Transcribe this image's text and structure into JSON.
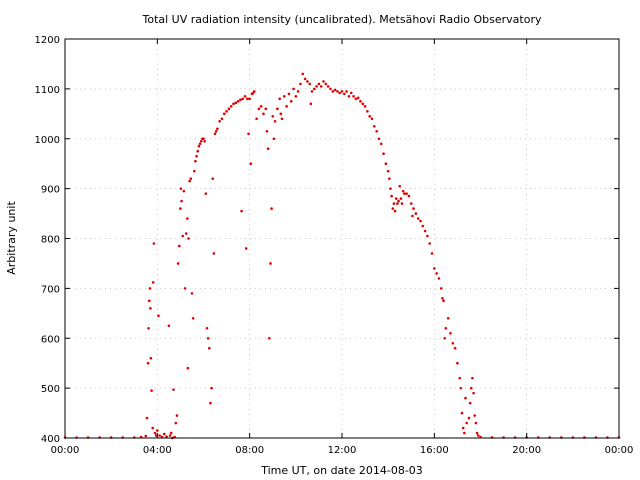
{
  "chart_data": {
    "type": "scatter",
    "title": "Total UV radiation intensity (uncalibrated). Metsähovi Radio Observatory",
    "xlabel": "Time UT, on date 2014-08-03",
    "ylabel": "Arbitrary unit",
    "xlim": [
      0,
      24
    ],
    "ylim": [
      400,
      1200
    ],
    "x_ticks": [
      {
        "value": 0,
        "label": "00:00"
      },
      {
        "value": 4,
        "label": "04:00"
      },
      {
        "value": 8,
        "label": "08:00"
      },
      {
        "value": 12,
        "label": "12:00"
      },
      {
        "value": 16,
        "label": "16:00"
      },
      {
        "value": 20,
        "label": "20:00"
      },
      {
        "value": 24,
        "label": "00:00"
      }
    ],
    "y_ticks": [
      {
        "value": 400,
        "label": "400"
      },
      {
        "value": 500,
        "label": "500"
      },
      {
        "value": 600,
        "label": "600"
      },
      {
        "value": 700,
        "label": "700"
      },
      {
        "value": 800,
        "label": "800"
      },
      {
        "value": 900,
        "label": "900"
      },
      {
        "value": 1000,
        "label": "1000"
      },
      {
        "value": 1100,
        "label": "1100"
      },
      {
        "value": 1200,
        "label": "1200"
      }
    ],
    "grid": true,
    "marker_color": "#e00000",
    "series": [
      {
        "x_unit": "hours UT",
        "points": [
          [
            0.0,
            401
          ],
          [
            0.5,
            401
          ],
          [
            1.0,
            401
          ],
          [
            1.5,
            401
          ],
          [
            2.0,
            401
          ],
          [
            2.5,
            401
          ],
          [
            3.0,
            401
          ],
          [
            3.3,
            402
          ],
          [
            3.5,
            404
          ],
          [
            3.55,
            440
          ],
          [
            3.6,
            550
          ],
          [
            3.62,
            620
          ],
          [
            3.65,
            675
          ],
          [
            3.68,
            700
          ],
          [
            3.7,
            660
          ],
          [
            3.72,
            560
          ],
          [
            3.75,
            495
          ],
          [
            3.8,
            420
          ],
          [
            3.82,
            712
          ],
          [
            3.85,
            790
          ],
          [
            3.9,
            410
          ],
          [
            3.95,
            405
          ],
          [
            4.0,
            415
          ],
          [
            4.05,
            645
          ],
          [
            4.1,
            405
          ],
          [
            4.2,
            402
          ],
          [
            4.3,
            408
          ],
          [
            4.4,
            403
          ],
          [
            4.5,
            625
          ],
          [
            4.55,
            405
          ],
          [
            4.6,
            410
          ],
          [
            4.65,
            400
          ],
          [
            4.7,
            497
          ],
          [
            4.75,
            402
          ],
          [
            4.8,
            430
          ],
          [
            4.85,
            445
          ],
          [
            4.9,
            750
          ],
          [
            4.95,
            785
          ],
          [
            5.0,
            860
          ],
          [
            5.02,
            900
          ],
          [
            5.05,
            875
          ],
          [
            5.1,
            805
          ],
          [
            5.15,
            895
          ],
          [
            5.2,
            700
          ],
          [
            5.25,
            810
          ],
          [
            5.3,
            840
          ],
          [
            5.32,
            540
          ],
          [
            5.35,
            800
          ],
          [
            5.4,
            915
          ],
          [
            5.45,
            920
          ],
          [
            5.5,
            690
          ],
          [
            5.55,
            640
          ],
          [
            5.6,
            935
          ],
          [
            5.65,
            955
          ],
          [
            5.7,
            965
          ],
          [
            5.75,
            975
          ],
          [
            5.8,
            985
          ],
          [
            5.85,
            990
          ],
          [
            5.9,
            995
          ],
          [
            5.95,
            1000
          ],
          [
            6.0,
            1000
          ],
          [
            6.05,
            995
          ],
          [
            6.1,
            890
          ],
          [
            6.15,
            620
          ],
          [
            6.2,
            600
          ],
          [
            6.25,
            580
          ],
          [
            6.3,
            470
          ],
          [
            6.35,
            500
          ],
          [
            6.4,
            920
          ],
          [
            6.45,
            770
          ],
          [
            6.5,
            1010
          ],
          [
            6.55,
            1015
          ],
          [
            6.6,
            1020
          ],
          [
            6.7,
            1035
          ],
          [
            6.8,
            1040
          ],
          [
            6.9,
            1050
          ],
          [
            7.0,
            1055
          ],
          [
            7.1,
            1060
          ],
          [
            7.2,
            1065
          ],
          [
            7.3,
            1070
          ],
          [
            7.4,
            1072
          ],
          [
            7.5,
            1075
          ],
          [
            7.6,
            1078
          ],
          [
            7.65,
            855
          ],
          [
            7.7,
            1080
          ],
          [
            7.8,
            1085
          ],
          [
            7.85,
            780
          ],
          [
            7.9,
            1080
          ],
          [
            7.95,
            1010
          ],
          [
            8.0,
            1080
          ],
          [
            8.05,
            950
          ],
          [
            8.1,
            1090
          ],
          [
            8.15,
            1092
          ],
          [
            8.2,
            1095
          ],
          [
            8.3,
            1040
          ],
          [
            8.4,
            1060
          ],
          [
            8.5,
            1065
          ],
          [
            8.6,
            1050
          ],
          [
            8.7,
            1060
          ],
          [
            8.75,
            1015
          ],
          [
            8.8,
            980
          ],
          [
            8.85,
            600
          ],
          [
            8.9,
            750
          ],
          [
            8.95,
            860
          ],
          [
            9.0,
            1045
          ],
          [
            9.05,
            1000
          ],
          [
            9.1,
            1035
          ],
          [
            9.2,
            1060
          ],
          [
            9.3,
            1080
          ],
          [
            9.35,
            1050
          ],
          [
            9.4,
            1040
          ],
          [
            9.5,
            1085
          ],
          [
            9.6,
            1065
          ],
          [
            9.7,
            1090
          ],
          [
            9.8,
            1075
          ],
          [
            9.9,
            1100
          ],
          [
            10.0,
            1085
          ],
          [
            10.1,
            1095
          ],
          [
            10.2,
            1110
          ],
          [
            10.3,
            1130
          ],
          [
            10.4,
            1120
          ],
          [
            10.5,
            1115
          ],
          [
            10.6,
            1110
          ],
          [
            10.65,
            1070
          ],
          [
            10.7,
            1095
          ],
          [
            10.8,
            1100
          ],
          [
            10.9,
            1105
          ],
          [
            11.0,
            1110
          ],
          [
            11.1,
            1105
          ],
          [
            11.2,
            1115
          ],
          [
            11.3,
            1110
          ],
          [
            11.4,
            1105
          ],
          [
            11.5,
            1100
          ],
          [
            11.6,
            1095
          ],
          [
            11.7,
            1098
          ],
          [
            11.8,
            1095
          ],
          [
            11.9,
            1092
          ],
          [
            12.0,
            1095
          ],
          [
            12.1,
            1090
          ],
          [
            12.2,
            1095
          ],
          [
            12.3,
            1085
          ],
          [
            12.4,
            1092
          ],
          [
            12.5,
            1085
          ],
          [
            12.6,
            1080
          ],
          [
            12.7,
            1082
          ],
          [
            12.8,
            1075
          ],
          [
            12.9,
            1070
          ],
          [
            13.0,
            1065
          ],
          [
            13.1,
            1055
          ],
          [
            13.2,
            1045
          ],
          [
            13.3,
            1040
          ],
          [
            13.4,
            1025
          ],
          [
            13.5,
            1015
          ],
          [
            13.6,
            1000
          ],
          [
            13.7,
            990
          ],
          [
            13.8,
            970
          ],
          [
            13.9,
            950
          ],
          [
            14.0,
            935
          ],
          [
            14.05,
            920
          ],
          [
            14.1,
            900
          ],
          [
            14.15,
            885
          ],
          [
            14.2,
            860
          ],
          [
            14.25,
            870
          ],
          [
            14.3,
            855
          ],
          [
            14.35,
            880
          ],
          [
            14.4,
            870
          ],
          [
            14.45,
            875
          ],
          [
            14.5,
            905
          ],
          [
            14.55,
            880
          ],
          [
            14.6,
            870
          ],
          [
            14.65,
            895
          ],
          [
            14.7,
            890
          ],
          [
            14.8,
            890
          ],
          [
            14.9,
            885
          ],
          [
            15.0,
            870
          ],
          [
            15.05,
            845
          ],
          [
            15.1,
            860
          ],
          [
            15.2,
            850
          ],
          [
            15.3,
            840
          ],
          [
            15.4,
            835
          ],
          [
            15.5,
            825
          ],
          [
            15.6,
            815
          ],
          [
            15.7,
            805
          ],
          [
            15.8,
            790
          ],
          [
            15.9,
            770
          ],
          [
            16.0,
            740
          ],
          [
            16.1,
            730
          ],
          [
            16.2,
            720
          ],
          [
            16.3,
            700
          ],
          [
            16.35,
            680
          ],
          [
            16.4,
            675
          ],
          [
            16.45,
            600
          ],
          [
            16.5,
            620
          ],
          [
            16.6,
            640
          ],
          [
            16.7,
            610
          ],
          [
            16.8,
            590
          ],
          [
            16.9,
            580
          ],
          [
            17.0,
            550
          ],
          [
            17.1,
            520
          ],
          [
            17.15,
            500
          ],
          [
            17.2,
            450
          ],
          [
            17.25,
            420
          ],
          [
            17.3,
            410
          ],
          [
            17.35,
            480
          ],
          [
            17.4,
            430
          ],
          [
            17.5,
            440
          ],
          [
            17.55,
            470
          ],
          [
            17.6,
            500
          ],
          [
            17.65,
            520
          ],
          [
            17.7,
            490
          ],
          [
            17.75,
            445
          ],
          [
            17.8,
            430
          ],
          [
            17.85,
            410
          ],
          [
            17.9,
            405
          ],
          [
            18.0,
            402
          ],
          [
            18.5,
            401
          ],
          [
            19.0,
            401
          ],
          [
            19.5,
            401
          ],
          [
            20.0,
            401
          ],
          [
            20.5,
            401
          ],
          [
            21.0,
            401
          ],
          [
            21.5,
            401
          ],
          [
            22.0,
            401
          ],
          [
            22.5,
            401
          ],
          [
            23.0,
            401
          ],
          [
            23.5,
            401
          ],
          [
            24.0,
            401
          ]
        ]
      }
    ]
  }
}
